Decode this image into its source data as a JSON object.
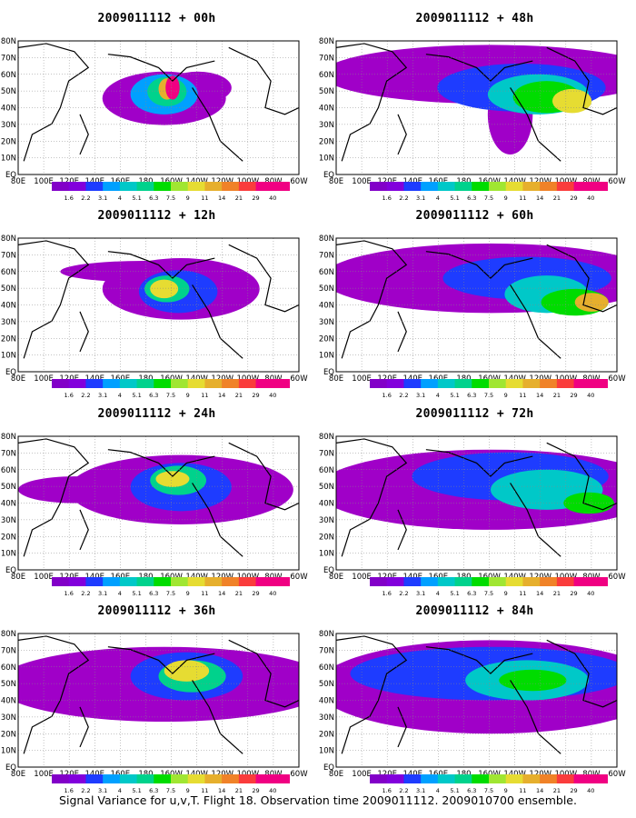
{
  "caption": "Signal Variance for u,v,T. Flight 18. Observation time 2009011112. 2009010700 ensemble.",
  "x_ticks": [
    "80E",
    "100E",
    "120E",
    "140E",
    "160E",
    "180",
    "160W",
    "140W",
    "120W",
    "100W",
    "80W",
    "60W"
  ],
  "y_ticks": [
    "EQ",
    "10N",
    "20N",
    "30N",
    "40N",
    "50N",
    "60N",
    "70N",
    "80N"
  ],
  "colorbar": {
    "levels": [
      "1.6",
      "2.2",
      "3.1",
      "4",
      "5.1",
      "6.3",
      "7.5",
      "9",
      "11",
      "14",
      "21",
      "29",
      "40"
    ],
    "colors": [
      "#a000c8",
      "#8200dc",
      "#1e3cff",
      "#00a0ff",
      "#00c8c8",
      "#00d28c",
      "#00dc00",
      "#a0e632",
      "#e6dc32",
      "#e6af2d",
      "#f08228",
      "#fa3c3c",
      "#f00082"
    ]
  },
  "panels": [
    {
      "title": "2009011112 + 00h"
    },
    {
      "title": "2009011112 + 48h"
    },
    {
      "title": "2009011112 + 12h"
    },
    {
      "title": "2009011112 + 60h"
    },
    {
      "title": "2009011112 + 24h"
    },
    {
      "title": "2009011112 + 72h"
    },
    {
      "title": "2009011112 + 36h"
    },
    {
      "title": "2009011112 + 84h"
    }
  ],
  "chart_data": {
    "type": "heatmap",
    "description_axes": {
      "x_range": [
        "80E",
        "60W"
      ],
      "y_range": [
        "EQ",
        "80N"
      ]
    },
    "forecast_hours": [
      "00h",
      "12h",
      "24h",
      "36h",
      "48h",
      "60h",
      "72h",
      "84h"
    ],
    "observation_time": "2009011112",
    "grid": true
  }
}
